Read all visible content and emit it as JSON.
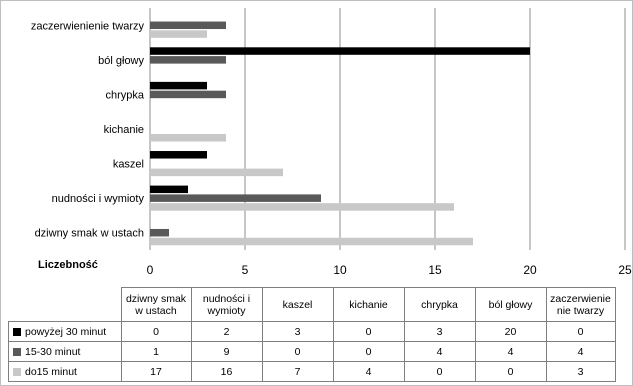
{
  "chart_data": {
    "type": "bar",
    "orientation": "horizontal",
    "categories": [
      "dziwny smak w ustach",
      "nudności i wymioty",
      "kaszel",
      "kichanie",
      "chrypka",
      "ból głowy",
      "zaczerwienienie twarzy"
    ],
    "table_headers": [
      "dziwny smak w ustach",
      "nudności i wymioty",
      "kaszel",
      "kichanie",
      "chrypka",
      "ból głowy",
      "zaczerwienie nie twarzy"
    ],
    "series": [
      {
        "name": "powyżej 30 minut",
        "color": "#000000",
        "values": [
          0,
          2,
          3,
          0,
          3,
          20,
          0
        ]
      },
      {
        "name": "15-30 minut",
        "color": "#595959",
        "values": [
          1,
          9,
          0,
          0,
          4,
          4,
          4
        ]
      },
      {
        "name": "do15 minut",
        "color": "#c8c8c8",
        "values": [
          17,
          16,
          7,
          4,
          0,
          0,
          3
        ]
      }
    ],
    "xlabel": "Liczebność",
    "xlim": [
      0,
      25
    ],
    "xticks": [
      0,
      5,
      10,
      15,
      20,
      25
    ],
    "grid": true,
    "legend": "data-table"
  }
}
